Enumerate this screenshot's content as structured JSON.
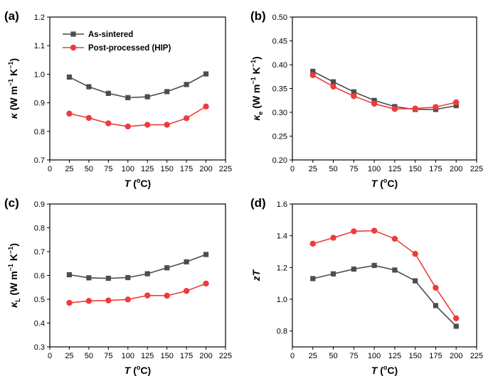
{
  "chart_data": [
    {
      "type": "line",
      "panel_label": "(a)",
      "ylabel_main": "κ",
      "ylabel_unit": " (W m",
      "ylabel_exp1": "−1",
      "ylabel_mid": " K",
      "ylabel_exp2": "−1",
      "ylabel_end": ")",
      "xlabel_italic": "T",
      "xlabel_rest": " (",
      "xlabel_sup": "o",
      "xlabel_end": "C)",
      "xlim": [
        0,
        225
      ],
      "ylim": [
        0.7,
        1.2
      ],
      "xticks": [
        "0",
        "25",
        "50",
        "75",
        "100",
        "125",
        "150",
        "175",
        "200",
        "225"
      ],
      "yticks": [
        "0.7",
        "0.8",
        "0.9",
        "1.0",
        "1.1",
        "1.2"
      ],
      "legend": [
        "As-sintered",
        "Post-processed (HIP)"
      ],
      "x": [
        25,
        50,
        75,
        100,
        125,
        150,
        175,
        200
      ],
      "series": [
        {
          "name": "As-sintered",
          "marker": "square",
          "color": "#4d4d4d",
          "values": [
            0.99,
            0.956,
            0.933,
            0.918,
            0.921,
            0.939,
            0.964,
            1.001
          ]
        },
        {
          "name": "Post-processed (HIP)",
          "marker": "circle",
          "color": "#ee3b3b",
          "values": [
            0.862,
            0.847,
            0.828,
            0.817,
            0.823,
            0.823,
            0.846,
            0.887
          ]
        }
      ]
    },
    {
      "type": "line",
      "panel_label": "(b)",
      "ylabel_main": "κ",
      "ylabel_sub": "e",
      "ylabel_unit": " (W m",
      "ylabel_exp1": "−1",
      "ylabel_mid": " K",
      "ylabel_exp2": "−1",
      "ylabel_end": ")",
      "xlabel_italic": "T",
      "xlabel_rest": " (",
      "xlabel_sup": "o",
      "xlabel_end": "C)",
      "xlim": [
        0,
        225
      ],
      "ylim": [
        0.2,
        0.5
      ],
      "xticks": [
        "0",
        "25",
        "50",
        "75",
        "100",
        "125",
        "150",
        "175",
        "200",
        "225"
      ],
      "yticks": [
        "0.20",
        "0.25",
        "0.30",
        "0.35",
        "0.40",
        "0.45",
        "0.50"
      ],
      "x": [
        25,
        50,
        75,
        100,
        125,
        150,
        175,
        200
      ],
      "series": [
        {
          "name": "As-sintered",
          "marker": "square",
          "color": "#4d4d4d",
          "values": [
            0.386,
            0.364,
            0.343,
            0.325,
            0.312,
            0.306,
            0.306,
            0.314
          ]
        },
        {
          "name": "Post-processed (HIP)",
          "marker": "circle",
          "color": "#ee3b3b",
          "values": [
            0.378,
            0.354,
            0.334,
            0.318,
            0.307,
            0.308,
            0.311,
            0.321
          ]
        }
      ]
    },
    {
      "type": "line",
      "panel_label": "(c)",
      "ylabel_main": "κ",
      "ylabel_sub": "L",
      "ylabel_unit": " (W m",
      "ylabel_exp1": "−1",
      "ylabel_mid": " K",
      "ylabel_exp2": "−1",
      "ylabel_end": ")",
      "xlabel_italic": "T",
      "xlabel_rest": " (",
      "xlabel_sup": "o",
      "xlabel_end": "C)",
      "xlim": [
        0,
        225
      ],
      "ylim": [
        0.3,
        0.9
      ],
      "xticks": [
        "0",
        "25",
        "50",
        "75",
        "100",
        "125",
        "150",
        "175",
        "200",
        "225"
      ],
      "yticks": [
        "0.3",
        "0.4",
        "0.5",
        "0.6",
        "0.7",
        "0.8",
        "0.9"
      ],
      "x": [
        25,
        50,
        75,
        100,
        125,
        150,
        175,
        200
      ],
      "series": [
        {
          "name": "As-sintered",
          "marker": "square",
          "color": "#4d4d4d",
          "values": [
            0.603,
            0.59,
            0.588,
            0.591,
            0.607,
            0.632,
            0.657,
            0.688
          ]
        },
        {
          "name": "Post-processed (HIP)",
          "marker": "circle",
          "color": "#ee3b3b",
          "values": [
            0.485,
            0.493,
            0.495,
            0.499,
            0.516,
            0.515,
            0.535,
            0.566
          ]
        }
      ]
    },
    {
      "type": "line",
      "panel_label": "(d)",
      "ylabel_zt_z": "z",
      "ylabel_zt_t": "T",
      "xlabel_italic": "T",
      "xlabel_rest": " (",
      "xlabel_sup": "o",
      "xlabel_end": "C)",
      "xlim": [
        0,
        225
      ],
      "ylim": [
        0.7,
        1.6
      ],
      "xticks": [
        "0",
        "25",
        "50",
        "75",
        "100",
        "125",
        "150",
        "175",
        "200",
        "225"
      ],
      "yticks": [
        "0.8",
        "1.0",
        "1.2",
        "1.4",
        "1.6"
      ],
      "x": [
        25,
        50,
        75,
        100,
        125,
        150,
        175,
        200
      ],
      "series": [
        {
          "name": "As-sintered",
          "marker": "square",
          "color": "#4d4d4d",
          "values": [
            1.13,
            1.16,
            1.19,
            1.213,
            1.184,
            1.116,
            0.96,
            0.83
          ]
        },
        {
          "name": "Post-processed (HIP)",
          "marker": "circle",
          "color": "#ee3b3b",
          "values": [
            1.35,
            1.387,
            1.428,
            1.432,
            1.381,
            1.286,
            1.072,
            0.88
          ]
        }
      ]
    }
  ]
}
